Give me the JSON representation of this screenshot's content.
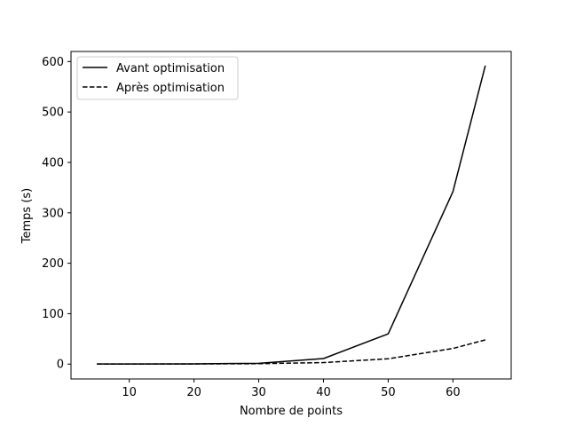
{
  "chart_data": {
    "type": "line",
    "xlabel": "Nombre de points",
    "ylabel": "Temps (s)",
    "xlim": [
      1,
      69
    ],
    "ylim": [
      -29.5,
      620
    ],
    "xticks": [
      10,
      20,
      30,
      40,
      50,
      60
    ],
    "xtick_labels": [
      "10",
      "20",
      "30",
      "40",
      "50",
      "60"
    ],
    "yticks": [
      0,
      100,
      200,
      300,
      400,
      500,
      600
    ],
    "ytick_labels": [
      "0",
      "100",
      "200",
      "300",
      "400",
      "500",
      "600"
    ],
    "grid": false,
    "legend_position": "top-left",
    "x": [
      5,
      10,
      20,
      30,
      40,
      50,
      60,
      65
    ],
    "series": [
      {
        "name": "Avant optimisation",
        "style": "solid",
        "color": "#000000",
        "values": [
          0.2,
          0.3,
          0.5,
          1.5,
          11,
          60,
          342,
          592
        ]
      },
      {
        "name": "Après optimisation",
        "style": "dashed",
        "color": "#000000",
        "values": [
          0.1,
          0.2,
          0.3,
          0.8,
          3,
          10.5,
          31,
          48
        ]
      }
    ]
  }
}
